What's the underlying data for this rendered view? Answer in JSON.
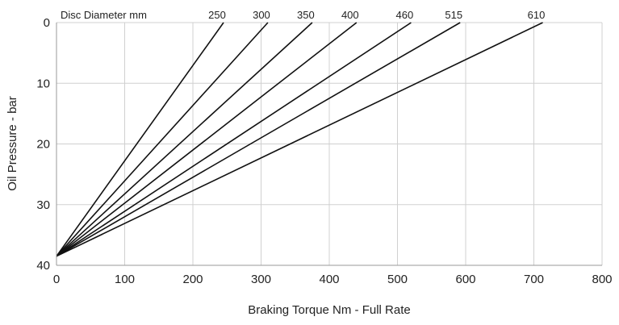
{
  "chart_data": {
    "type": "line",
    "title": "",
    "xlabel": "Braking Torque Nm - Full Rate",
    "ylabel": "Oil Pressure - bar",
    "legend_title": "Disc Diameter mm",
    "xlim": [
      0,
      800
    ],
    "ylim": [
      0,
      40
    ],
    "y_inverted": true,
    "x_ticks": [
      "0",
      "100",
      "200",
      "300",
      "400",
      "500",
      "600",
      "700",
      "800"
    ],
    "y_ticks": [
      "0",
      "10",
      "20",
      "30",
      "40"
    ],
    "grid": true,
    "legend_placement": "top (labels at line ends)",
    "line_color": "#111111",
    "grid_color": "#d0d0d0",
    "series": [
      {
        "name": "250",
        "x": [
          0,
          245
        ],
        "y": [
          38.5,
          0
        ]
      },
      {
        "name": "300",
        "x": [
          0,
          310
        ],
        "y": [
          38.5,
          0
        ]
      },
      {
        "name": "350",
        "x": [
          0,
          375
        ],
        "y": [
          38.5,
          0
        ]
      },
      {
        "name": "400",
        "x": [
          0,
          440
        ],
        "y": [
          38.5,
          0
        ]
      },
      {
        "name": "460",
        "x": [
          0,
          520
        ],
        "y": [
          38.5,
          0
        ]
      },
      {
        "name": "515",
        "x": [
          0,
          592
        ],
        "y": [
          38.5,
          0
        ]
      },
      {
        "name": "610",
        "x": [
          0,
          713
        ],
        "y": [
          38.5,
          0
        ]
      }
    ]
  }
}
